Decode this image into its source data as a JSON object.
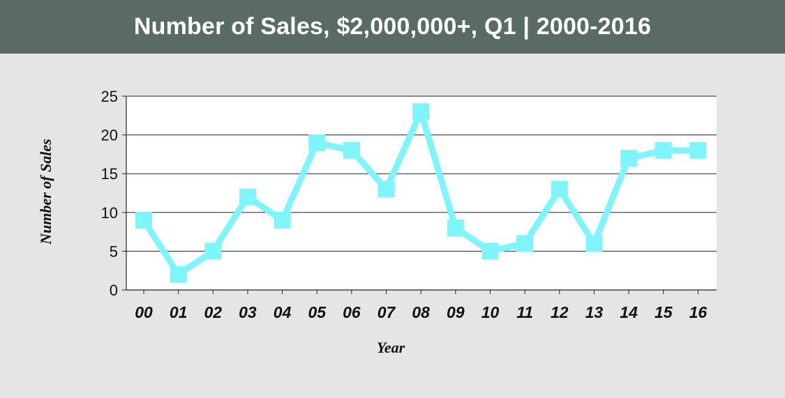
{
  "header": {
    "title": "Number of Sales, $2,000,000+, Q1 | 2000-2016"
  },
  "colors": {
    "header_bg": "#5a6a67",
    "page_bg": "#e5e5e5",
    "plot_bg": "#ffffff",
    "series": "#80f4fb"
  },
  "chart_data": {
    "type": "line",
    "title": "Number of Sales, $2,000,000+, Q1 | 2000-2016",
    "xlabel": "Year",
    "ylabel": "Number of Sales",
    "categories": [
      "00",
      "01",
      "02",
      "03",
      "04",
      "05",
      "06",
      "07",
      "08",
      "09",
      "10",
      "11",
      "12",
      "13",
      "14",
      "15",
      "16"
    ],
    "series": [
      {
        "values": [
          9,
          2,
          5,
          12,
          9,
          19,
          18,
          13,
          23,
          8,
          5,
          6,
          13,
          6,
          17,
          18,
          18
        ]
      }
    ],
    "ylim": [
      0,
      25
    ],
    "yticks": [
      0,
      5,
      10,
      15,
      20,
      25
    ],
    "grid": true,
    "marker": "square"
  }
}
